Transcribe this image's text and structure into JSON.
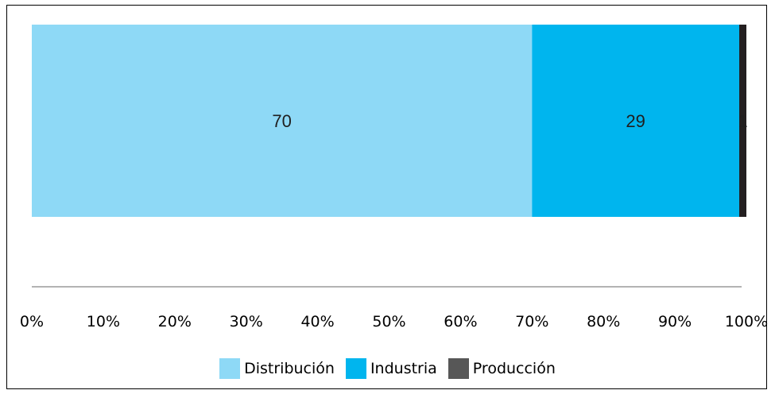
{
  "chart_data": {
    "type": "bar",
    "orientation": "horizontal",
    "stacked": "percent",
    "title": "",
    "xlabel": "",
    "ylabel": "",
    "xlim": [
      0,
      100
    ],
    "x_ticks": [
      "0%",
      "10%",
      "20%",
      "30%",
      "40%",
      "50%",
      "60%",
      "70%",
      "80%",
      "90%",
      "100%"
    ],
    "series": [
      {
        "name": "Distribución",
        "value": 70,
        "label": "70",
        "color": "#8ed9f6"
      },
      {
        "name": "Industria",
        "value": 29,
        "label": "29",
        "color": "#00b5ee"
      },
      {
        "name": "Producción",
        "value": 1,
        "label": "1",
        "color": "#231f20"
      }
    ],
    "legend_position": "bottom",
    "grid": false
  },
  "legend": {
    "items": [
      {
        "label": "Distribución",
        "color": "#8ed9f6"
      },
      {
        "label": "Industria",
        "color": "#00b5ee"
      },
      {
        "label": "Producción",
        "color": "#575757"
      }
    ]
  }
}
